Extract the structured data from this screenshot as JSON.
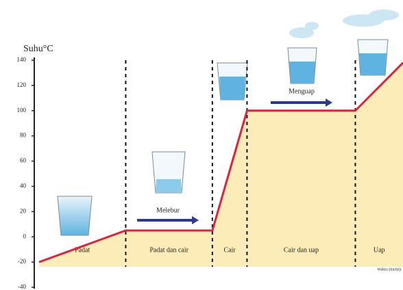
{
  "chart_data": {
    "type": "line",
    "y_label": "Suhu°C",
    "x_label": "Waktu (menit)",
    "x": [
      0,
      10,
      20,
      24,
      36.5,
      42
    ],
    "values": [
      -20,
      5,
      5,
      100,
      100,
      138
    ],
    "color": "#e0213a",
    "area_color": "#fbe9a6",
    "xlim": [
      0,
      42
    ],
    "ylim": [
      -40,
      140
    ],
    "yticks": [
      140,
      120,
      100,
      80,
      60,
      40,
      20,
      0,
      -20,
      -40
    ],
    "phases": [
      "Padat",
      "Padat dan cair",
      "Cair",
      "Cair dan uap",
      "Uap"
    ],
    "annotations": [
      "Melebur",
      "Menguap"
    ],
    "arrow_color": "#2b3990"
  }
}
